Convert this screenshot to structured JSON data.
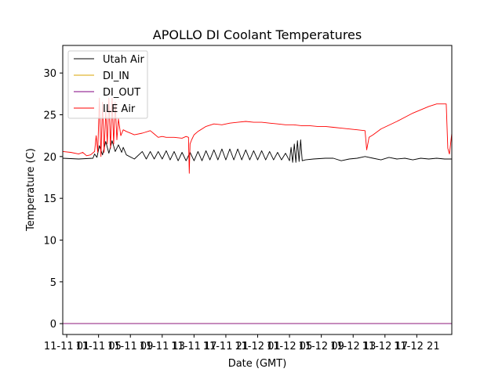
{
  "chart_data": {
    "type": "line",
    "title": "APOLLO DI Coolant Temperatures",
    "xlabel": "Date (GMT)",
    "ylabel": "Temperature (C)",
    "xlim": [
      0,
      48.9
    ],
    "ylim": [
      -1.3,
      33.3
    ],
    "grid": false,
    "legend_position": "top-left",
    "yticks": [
      0,
      5,
      10,
      15,
      20,
      25,
      30
    ],
    "xticks": [
      {
        "value": 0.5,
        "label": "11-11 01"
      },
      {
        "value": 4.5,
        "label": "11-11 05"
      },
      {
        "value": 8.5,
        "label": "11-11 09"
      },
      {
        "value": 12.5,
        "label": "11-11 13"
      },
      {
        "value": 16.5,
        "label": "11-11 17"
      },
      {
        "value": 20.5,
        "label": "11-11 21"
      },
      {
        "value": 24.5,
        "label": "11-12 01"
      },
      {
        "value": 28.5,
        "label": "11-12 05"
      },
      {
        "value": 32.5,
        "label": "11-12 09"
      },
      {
        "value": 36.5,
        "label": "11-12 13"
      },
      {
        "value": 40.5,
        "label": "11-12 17"
      },
      {
        "value": 44.5,
        "label": "11-12 21"
      }
    ],
    "series": [
      {
        "name": "Utah Air",
        "color": "#000000",
        "x": [
          0,
          2,
          3.8,
          4.0,
          4.3,
          4.6,
          5.0,
          5.4,
          5.8,
          6.2,
          6.6,
          7.0,
          7.4,
          7.6,
          8.0,
          9.0,
          10.0,
          10.5,
          11.0,
          11.5,
          12.0,
          12.5,
          13.0,
          13.5,
          14.0,
          14.5,
          15.0,
          15.5,
          16.0,
          16.5,
          17.0,
          17.5,
          18.0,
          18.5,
          19.0,
          19.5,
          20.0,
          20.5,
          21.0,
          21.5,
          22.0,
          22.5,
          23.0,
          23.5,
          24.0,
          24.5,
          25.0,
          25.5,
          26.0,
          26.5,
          27.0,
          27.5,
          28.0,
          28.5,
          28.7,
          28.9,
          29.1,
          29.3,
          29.5,
          29.7,
          29.9,
          30.1,
          30.5,
          31.5,
          33.0,
          34.0,
          35.0,
          36.0,
          37.0,
          38.0,
          39.0,
          40.0,
          41.0,
          42.0,
          43.0,
          44.0,
          45.0,
          46.0,
          47.0,
          48.0,
          48.9
        ],
        "values": [
          19.8,
          19.7,
          19.8,
          20.3,
          19.9,
          21.3,
          20.2,
          21.8,
          20.4,
          21.9,
          20.6,
          21.4,
          20.5,
          21.1,
          20.2,
          19.7,
          20.6,
          19.7,
          20.6,
          19.7,
          20.6,
          19.7,
          20.7,
          19.6,
          20.6,
          19.5,
          20.5,
          19.5,
          20.5,
          19.5,
          20.6,
          19.5,
          20.7,
          19.6,
          20.8,
          19.6,
          20.9,
          19.6,
          20.9,
          19.6,
          20.9,
          19.6,
          20.8,
          19.6,
          20.7,
          19.6,
          20.7,
          19.6,
          20.6,
          19.6,
          20.5,
          19.6,
          20.4,
          19.5,
          21.1,
          19.3,
          21.5,
          19.3,
          21.9,
          19.4,
          22.0,
          19.5,
          19.6,
          19.7,
          19.8,
          19.8,
          19.5,
          19.7,
          19.8,
          20.0,
          19.8,
          19.6,
          19.9,
          19.7,
          19.8,
          19.6,
          19.8,
          19.7,
          19.8,
          19.7,
          19.7
        ]
      },
      {
        "name": "DI_IN",
        "color": "#d9a300",
        "x": [
          0,
          48.9
        ],
        "values": [
          0,
          0
        ]
      },
      {
        "name": "DI_OUT",
        "color": "#800080",
        "x": [
          0,
          48.9
        ],
        "values": [
          0,
          0
        ]
      },
      {
        "name": "ILE Air",
        "color": "#ff0000",
        "x": [
          0,
          1.0,
          2.0,
          2.5,
          3.0,
          3.5,
          4.0,
          4.2,
          4.4,
          4.6,
          4.8,
          5.0,
          5.2,
          5.4,
          5.6,
          5.8,
          6.0,
          6.2,
          6.4,
          6.6,
          6.8,
          7.0,
          7.3,
          7.6,
          8.0,
          9.0,
          10.0,
          11.0,
          11.5,
          12.0,
          12.5,
          13.0,
          14.0,
          15.0,
          15.5,
          15.8,
          15.9,
          16.0,
          16.2,
          16.5,
          17.0,
          18.0,
          19.0,
          20.0,
          21.0,
          22.0,
          23.0,
          24.0,
          25.0,
          26.0,
          27.0,
          28.0,
          29.0,
          30.0,
          31.0,
          32.0,
          33.0,
          34.0,
          35.0,
          37.0,
          38.0,
          38.2,
          38.5,
          39.0,
          40.0,
          42.0,
          44.0,
          46.0,
          47.0,
          48.2,
          48.4,
          48.6,
          48.9
        ],
        "values": [
          20.6,
          20.5,
          20.3,
          20.5,
          20.1,
          20.2,
          20.6,
          22.5,
          20.5,
          27.0,
          20.0,
          26.5,
          20.5,
          25.5,
          21.5,
          27.0,
          21.0,
          27.0,
          21.5,
          26.5,
          22.0,
          24.5,
          22.5,
          23.2,
          23.0,
          22.6,
          22.8,
          23.1,
          22.7,
          22.3,
          22.4,
          22.3,
          22.3,
          22.2,
          22.4,
          22.3,
          18.0,
          21.5,
          22.0,
          22.6,
          23.0,
          23.6,
          23.9,
          23.8,
          24.0,
          24.1,
          24.2,
          24.1,
          24.1,
          24.0,
          23.9,
          23.8,
          23.8,
          23.7,
          23.7,
          23.6,
          23.6,
          23.5,
          23.4,
          23.2,
          23.1,
          20.8,
          22.3,
          22.6,
          23.3,
          24.2,
          25.2,
          26.0,
          26.3,
          26.3,
          21.0,
          20.3,
          22.8
        ]
      }
    ]
  }
}
